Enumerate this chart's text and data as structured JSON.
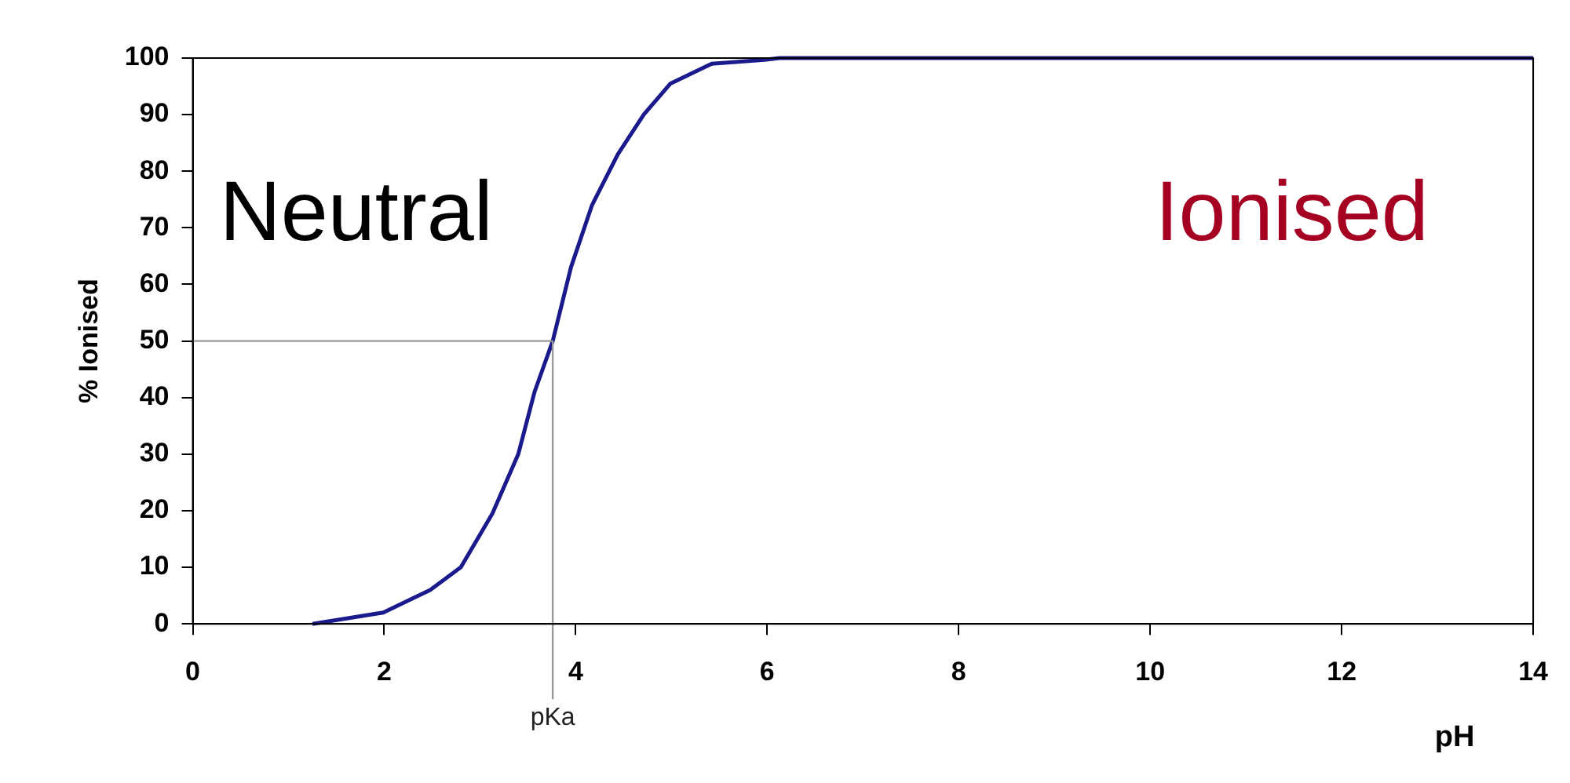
{
  "chart_data": {
    "type": "line",
    "xlabel": "pH",
    "ylabel": "% Ionised",
    "xlim": [
      0,
      14
    ],
    "xticks": [
      0,
      2,
      4,
      6,
      8,
      10,
      12,
      14
    ],
    "ylim": [
      0,
      100
    ],
    "yticks": [
      0,
      10,
      20,
      30,
      40,
      50,
      60,
      70,
      80,
      90,
      100
    ],
    "grid": false,
    "legend": false,
    "marker": "none",
    "line_style": "solid",
    "series": [
      {
        "color": "#1a1a8c",
        "x": [
          1.25,
          1.99,
          2.48,
          2.8,
          3.13,
          3.4,
          3.57,
          3.76,
          3.95,
          4.17,
          4.44,
          4.71,
          4.99,
          5.42,
          5.97,
          6.13,
          14
        ],
        "values": [
          0,
          2,
          6,
          10,
          19.5,
          30,
          41,
          50,
          63,
          74,
          83,
          90,
          95.5,
          99,
          99.7,
          100,
          100
        ]
      }
    ],
    "ref_lines": [
      {
        "axis": "x",
        "value": 3.76,
        "label": "pKa",
        "color": "#999999"
      },
      {
        "axis": "y",
        "value": 50,
        "color": "#999999"
      }
    ],
    "annotations": [
      "Neutral",
      "Ionised"
    ]
  }
}
